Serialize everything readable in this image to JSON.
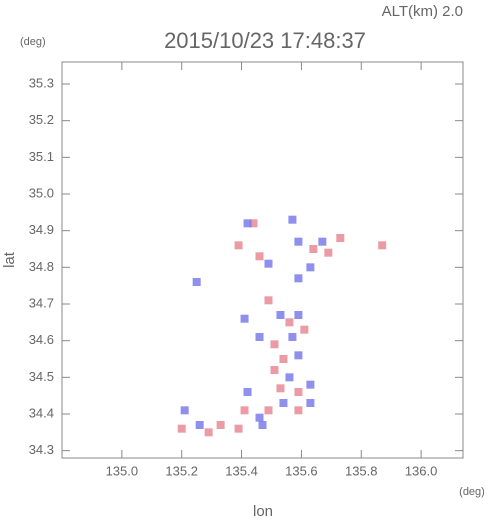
{
  "chart_data": {
    "type": "scatter",
    "title": "2015/10/23 17:48:37",
    "altitude_label": "ALT(km)  2.0",
    "y_unit": "(deg)",
    "x_unit": "(deg)",
    "xlabel": "lon",
    "ylabel": "lat",
    "xlim": [
      134.8,
      136.14
    ],
    "ylim": [
      34.28,
      35.36
    ],
    "xticks": [
      {
        "value": 135.0,
        "label": "135.0"
      },
      135.2,
      135.4,
      135.6,
      135.8,
      {
        "value": 136.0,
        "label": "136.0"
      }
    ],
    "yticks": [
      34.3,
      34.4,
      34.5,
      34.6,
      34.7,
      34.8,
      34.9,
      {
        "value": 35.0,
        "label": "35.0"
      },
      35.1,
      35.2,
      35.3
    ],
    "x": [
      135.44,
      135.42,
      135.57,
      135.39,
      135.46,
      135.49,
      135.59,
      135.64,
      135.67,
      135.69,
      135.63,
      135.59,
      135.73,
      135.87,
      135.25,
      135.41,
      135.49,
      135.53,
      135.56,
      135.59,
      135.46,
      135.51,
      135.57,
      135.61,
      135.54,
      135.59,
      135.51,
      135.56,
      135.63,
      135.53,
      135.59,
      135.54,
      135.59,
      135.63,
      135.49,
      135.42,
      135.41,
      135.46,
      135.21,
      135.26,
      135.29,
      135.33,
      135.2,
      135.39,
      135.47
    ],
    "y": [
      34.92,
      34.92,
      34.93,
      34.86,
      34.83,
      34.81,
      34.87,
      34.85,
      34.87,
      34.84,
      34.8,
      34.77,
      34.88,
      34.86,
      34.76,
      34.66,
      34.71,
      34.67,
      34.65,
      34.67,
      34.61,
      34.59,
      34.61,
      34.63,
      34.55,
      34.56,
      34.52,
      34.5,
      34.48,
      34.47,
      34.46,
      34.43,
      34.41,
      34.43,
      34.41,
      34.46,
      34.41,
      34.39,
      34.41,
      34.37,
      34.35,
      34.37,
      34.36,
      34.36,
      34.37
    ],
    "colors": [
      "#e88a94",
      "#7b7bea",
      "#7b7bea",
      "#e88a94",
      "#e88a94",
      "#7b7bea",
      "#7b7bea",
      "#e88a94",
      "#7b7bea",
      "#e88a94",
      "#7b7bea",
      "#7b7bea",
      "#e88a94",
      "#e88a94",
      "#7b7bea",
      "#7b7bea",
      "#e88a94",
      "#7b7bea",
      "#e88a94",
      "#7b7bea",
      "#7b7bea",
      "#e88a94",
      "#7b7bea",
      "#e88a94",
      "#e88a94",
      "#7b7bea",
      "#e88a94",
      "#7b7bea",
      "#7b7bea",
      "#e88a94",
      "#e88a94",
      "#7b7bea",
      "#e88a94",
      "#7b7bea",
      "#e88a94",
      "#7b7bea",
      "#e88a94",
      "#7b7bea",
      "#7b7bea",
      "#7b7bea",
      "#e88a94",
      "#e88a94",
      "#e88a94",
      "#e88a94",
      "#7b7bea"
    ]
  }
}
